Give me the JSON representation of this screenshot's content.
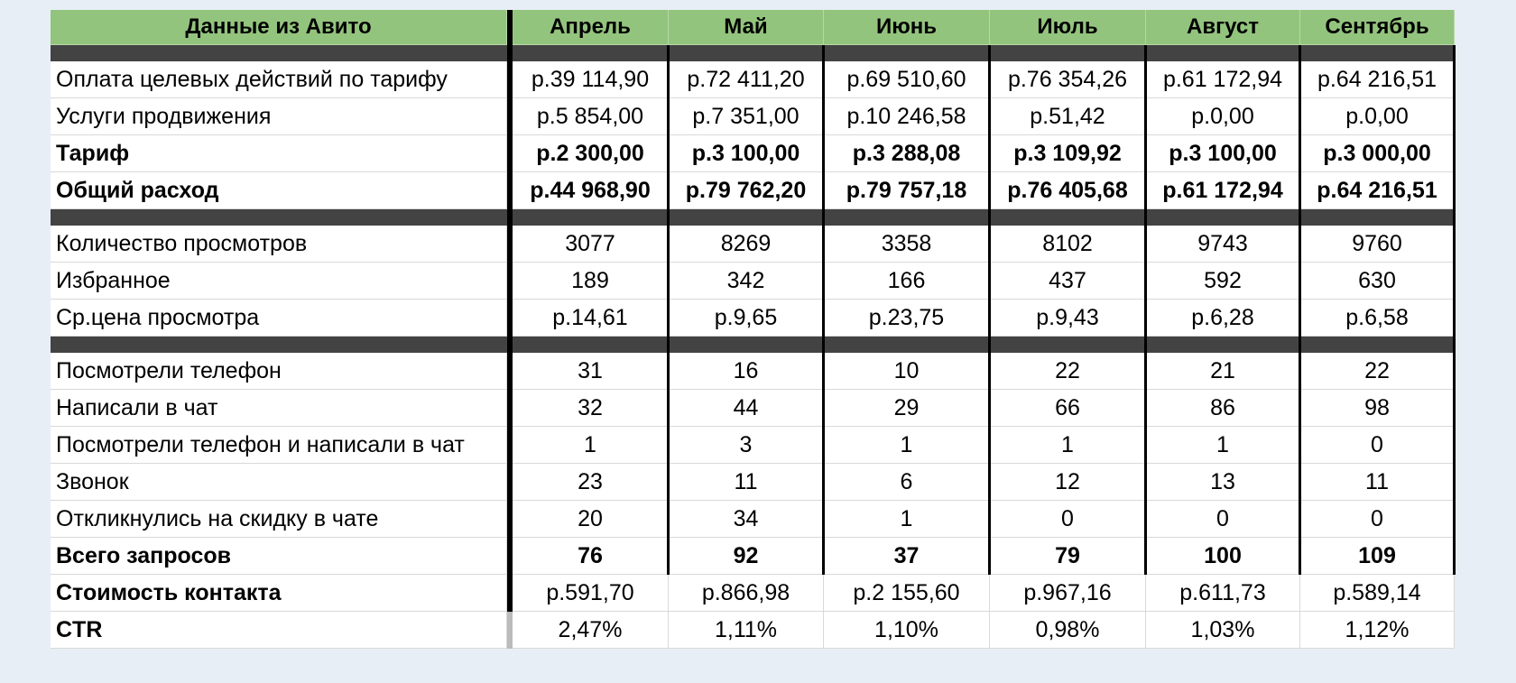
{
  "table": {
    "header": [
      "Данные из Авито",
      "Апрель",
      "Май",
      "Июнь",
      "Июль",
      "Август",
      "Сентябрь"
    ],
    "sections": [
      [
        {
          "label": "Оплата целевых действий по тарифу",
          "values": [
            "р.39 114,90",
            "р.72 411,20",
            "р.69 510,60",
            "р.76 354,26",
            "р.61 172,94",
            "р.64 216,51"
          ],
          "bold": false
        },
        {
          "label": "Услуги продвижения",
          "values": [
            "р.5 854,00",
            "р.7 351,00",
            "р.10 246,58",
            "р.51,42",
            "р.0,00",
            "р.0,00"
          ],
          "bold": false
        },
        {
          "label": "Тариф",
          "values": [
            "р.2 300,00",
            "р.3 100,00",
            "р.3 288,08",
            "р.3 109,92",
            "р.3 100,00",
            "р.3 000,00"
          ],
          "bold": true
        },
        {
          "label": "Общий расход",
          "values": [
            "р.44 968,90",
            "р.79 762,20",
            "р.79 757,18",
            "р.76 405,68",
            "р.61 172,94",
            "р.64 216,51"
          ],
          "bold": true
        }
      ],
      [
        {
          "label": "Количество просмотров",
          "values": [
            "3077",
            "8269",
            "3358",
            "8102",
            "9743",
            "9760"
          ],
          "bold": false
        },
        {
          "label": "Избранное",
          "values": [
            "189",
            "342",
            "166",
            "437",
            "592",
            "630"
          ],
          "bold": false
        },
        {
          "label": "Ср.цена просмотра",
          "values": [
            "р.14,61",
            "р.9,65",
            "р.23,75",
            "р.9,43",
            "р.6,28",
            "р.6,58"
          ],
          "bold": false
        }
      ],
      [
        {
          "label": "Посмотрели телефон",
          "values": [
            "31",
            "16",
            "10",
            "22",
            "21",
            "22"
          ],
          "bold": false
        },
        {
          "label": "Написали в чат",
          "values": [
            "32",
            "44",
            "29",
            "66",
            "86",
            "98"
          ],
          "bold": false
        },
        {
          "label": "Посмотрели телефон и написали в чат",
          "values": [
            "1",
            "3",
            "1",
            "1",
            "1",
            "0"
          ],
          "bold": false
        },
        {
          "label": "Звонок",
          "values": [
            "23",
            "11",
            "6",
            "12",
            "13",
            "11"
          ],
          "bold": false
        },
        {
          "label": "Откликнулись на скидку в чате",
          "values": [
            "20",
            "34",
            "1",
            "0",
            "0",
            "0"
          ],
          "bold": false
        },
        {
          "label": "Всего запросов",
          "values": [
            "76",
            "92",
            "37",
            "79",
            "100",
            "109"
          ],
          "bold": true
        },
        {
          "label": "Стоимость контакта",
          "values": [
            "р.591,70",
            "р.866,98",
            "р.2 155,60",
            "р.967,16",
            "р.611,73",
            "р.589,14"
          ],
          "bold": "label"
        },
        {
          "label": "CTR",
          "values": [
            "2,47%",
            "1,11%",
            "1,10%",
            "0,98%",
            "1,03%",
            "1,12%"
          ],
          "bold": "label"
        }
      ]
    ]
  }
}
